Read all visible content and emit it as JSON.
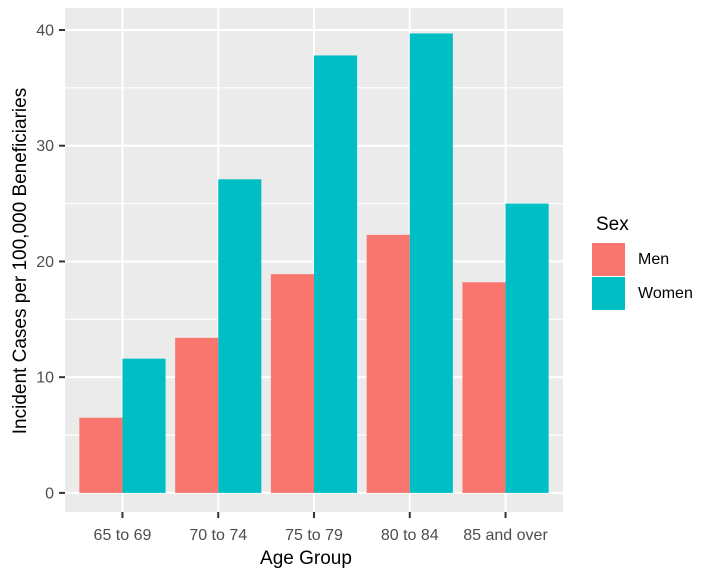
{
  "chart_data": {
    "type": "bar",
    "title": "",
    "categories": [
      "65 to 69",
      "70 to 74",
      "75 to 79",
      "80 to 84",
      "85 and over"
    ],
    "series": [
      {
        "name": "Men",
        "color": "#F8766D",
        "values": [
          6.5,
          13.4,
          18.9,
          22.3,
          18.2
        ]
      },
      {
        "name": "Women",
        "color": "#00BFC4",
        "values": [
          11.6,
          27.1,
          37.8,
          39.7,
          25.0
        ]
      }
    ],
    "xlabel": "Age Group",
    "ylabel": "Incident Cases per 100,000 Beneficiaries",
    "ylim": [
      -1.65,
      41.9
    ],
    "yticks": [
      0,
      10,
      20,
      30,
      40
    ],
    "minor_gridlines": [
      5,
      15,
      25,
      35
    ],
    "grid": "on",
    "legend_position": "right",
    "bar_mode": "grouped",
    "colors": {
      "panel_background": "#EBEBEB",
      "gridline": "#FFFFFF",
      "tick_mark": "#333333",
      "tick_label": "#4D4D4D",
      "axis_title": "#000000"
    }
  },
  "legend": {
    "title": "Sex",
    "items": [
      {
        "label": "Men",
        "color": "#F8766D"
      },
      {
        "label": "Women",
        "color": "#00BFC4"
      }
    ]
  }
}
